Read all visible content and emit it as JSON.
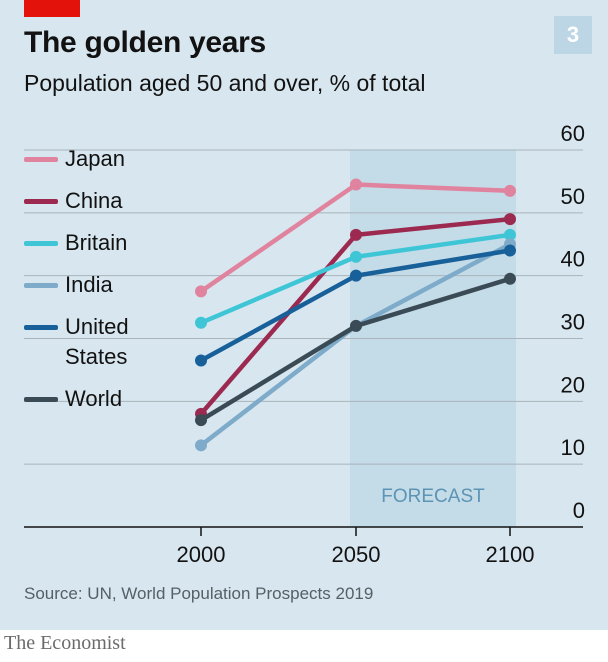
{
  "header": {
    "title": "The golden years",
    "subtitle": "Population aged 50 and over, % of total",
    "badge": "3"
  },
  "source": "Source: UN, World Population Prospects 2019",
  "brand": "The Economist",
  "chart_data": {
    "type": "line",
    "title": "The golden years",
    "subtitle": "Population aged 50 and over, % of total",
    "x": [
      2000,
      2050,
      2100
    ],
    "x_tick_labels": [
      "2000",
      "2050",
      "2100"
    ],
    "ylim": [
      0,
      60
    ],
    "y_ticks": [
      0,
      10,
      20,
      30,
      40,
      50,
      60
    ],
    "y_tick_labels": [
      "0",
      "10",
      "20",
      "30",
      "40",
      "50",
      "60"
    ],
    "y_axis_side": "right",
    "grid": true,
    "legend_position": "top-left",
    "forecast": {
      "from": 2050,
      "to": 2100,
      "label": "FORECAST",
      "color": "#c4dbe8"
    },
    "series": [
      {
        "name": "Japan",
        "color": "#e0839e",
        "values": [
          37.5,
          54.5,
          53.5
        ]
      },
      {
        "name": "China",
        "color": "#9c2a50",
        "values": [
          18,
          46.5,
          49
        ]
      },
      {
        "name": "Britain",
        "color": "#3ec6d6",
        "values": [
          32.5,
          43,
          46.5
        ]
      },
      {
        "name": "India",
        "color": "#7eabc9",
        "values": [
          13,
          32,
          45
        ]
      },
      {
        "name": "United\nStates",
        "color": "#17609a",
        "values": [
          26.5,
          40,
          44
        ]
      },
      {
        "name": "World",
        "color": "#3a4b55",
        "values": [
          17,
          32,
          39.5
        ]
      }
    ]
  }
}
